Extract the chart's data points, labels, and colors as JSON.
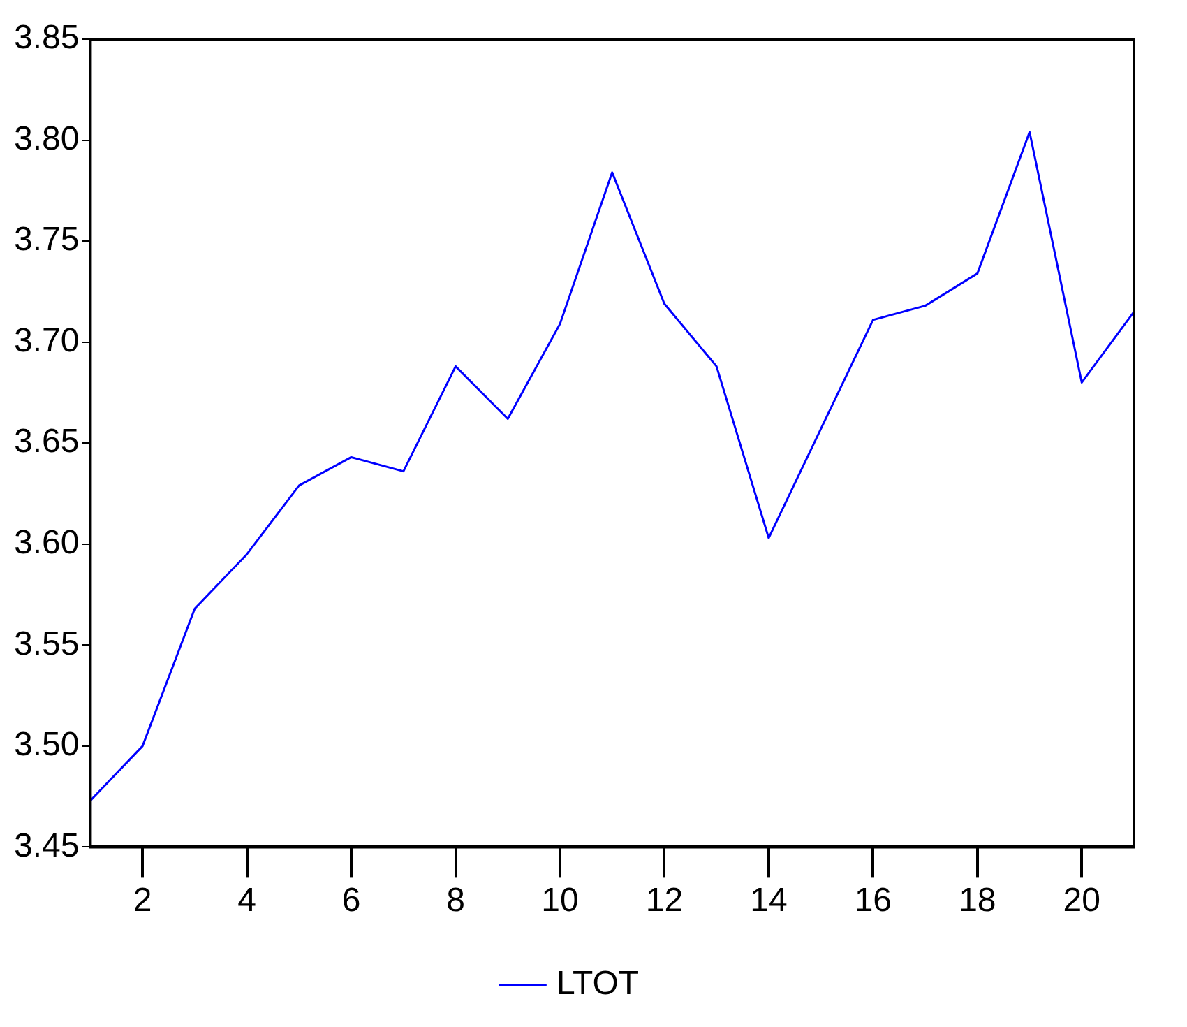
{
  "chart_data": {
    "type": "line",
    "x": [
      1,
      2,
      3,
      4,
      5,
      6,
      7,
      8,
      9,
      10,
      11,
      12,
      13,
      14,
      15,
      16,
      17,
      18,
      19,
      20,
      21
    ],
    "series": [
      {
        "name": "LTOT",
        "color": "#0000ff",
        "values": [
          3.473,
          3.5,
          3.568,
          3.595,
          3.629,
          3.643,
          3.636,
          3.688,
          3.662,
          3.709,
          3.784,
          3.719,
          3.688,
          3.603,
          3.657,
          3.711,
          3.718,
          3.734,
          3.804,
          3.68,
          3.715
        ]
      }
    ],
    "xlim": [
      1,
      21
    ],
    "xticks": [
      2,
      4,
      6,
      8,
      10,
      12,
      14,
      16,
      18,
      20
    ],
    "ylim": [
      3.45,
      3.85
    ],
    "yticks": [
      {
        "value": 3.45,
        "label": "3.45"
      },
      {
        "value": 3.5,
        "label": "3.50"
      },
      {
        "value": 3.55,
        "label": "3.55"
      },
      {
        "value": 3.6,
        "label": "3.60"
      },
      {
        "value": 3.65,
        "label": "3.65"
      },
      {
        "value": 3.7,
        "label": "3.70"
      },
      {
        "value": 3.75,
        "label": "3.75"
      },
      {
        "value": 3.8,
        "label": "3.80"
      },
      {
        "value": 3.85,
        "label": "3.85"
      }
    ],
    "grid": false,
    "legend": "bottom",
    "marker": "none",
    "line_style": "solid"
  }
}
